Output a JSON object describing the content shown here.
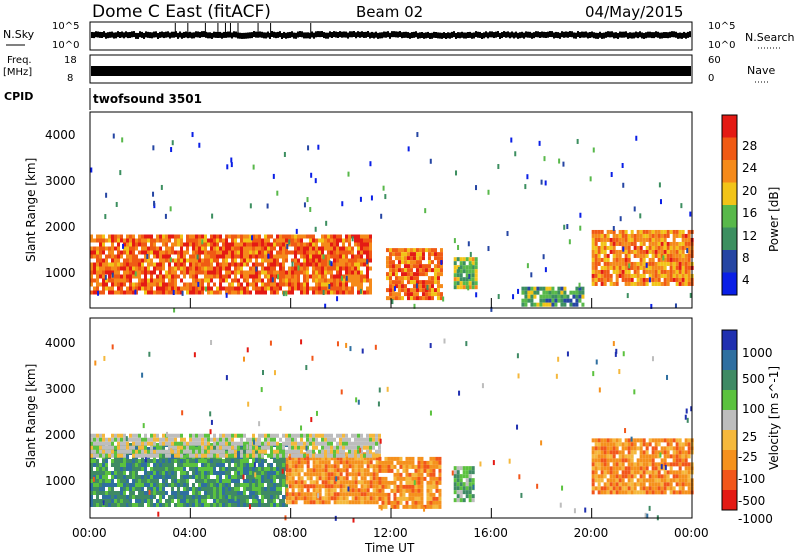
{
  "header": {
    "title": "Dome C East (fitACF)",
    "beam": "Beam 02",
    "date": "04/May/2015"
  },
  "top_panels": {
    "nsky_label": "N.Sky",
    "nsky_ticks": [
      "10^5",
      "10^0"
    ],
    "nsearch_label": "N.Search",
    "nsearch_ticks": [
      "10^5",
      "10^0"
    ],
    "freq_label": "Freq.",
    "freq_unit": "[MHz]",
    "freq_ticks": [
      "18",
      "8"
    ],
    "nave_label": "Nave",
    "nave_ticks": [
      "60",
      "0"
    ],
    "cpid_label": "CPID",
    "cpid_value": "twofsound 3501"
  },
  "colors": {
    "power": [
      "#0a1fe6",
      "#2545a3",
      "#3c8f60",
      "#58b84a",
      "#f2c418",
      "#f58a1a",
      "#f05a14",
      "#e41a14"
    ],
    "velocity": [
      "#2030b0",
      "#2f6fa0",
      "#3f8a64",
      "#5bc23e",
      "#bdbdbd",
      "#f5b83c",
      "#f5911c",
      "#f2561a",
      "#e41a14"
    ]
  },
  "chart_data": [
    {
      "type": "heatmap",
      "title": "Power",
      "ylabel": "Slant Range [km]",
      "xlabel": "",
      "x_ticks": [
        "00:00",
        "04:00",
        "08:00",
        "12:00",
        "16:00",
        "20:00",
        "00:00"
      ],
      "xlim_hours": [
        0,
        24
      ],
      "y_ticks": [
        "4000",
        "3000",
        "2000",
        "1000"
      ],
      "ylim": [
        180,
        4500
      ],
      "colorbar_label": "Power [dB]",
      "colorbar_ticks": [
        "28",
        "24",
        "20",
        "16",
        "12",
        "8",
        "4"
      ],
      "colorbar_range": [
        0,
        32
      ],
      "regions": [
        {
          "t": [
            0.0,
            11.2
          ],
          "r": [
            500,
            1800
          ],
          "v": 23
        },
        {
          "t": [
            11.8,
            14.0
          ],
          "r": [
            400,
            1500
          ],
          "v": 22
        },
        {
          "t": [
            14.5,
            15.4
          ],
          "r": [
            600,
            1300
          ],
          "v": 13
        },
        {
          "t": [
            17.2,
            19.6
          ],
          "r": [
            250,
            650
          ],
          "v": 10
        },
        {
          "t": [
            20.0,
            24.0
          ],
          "r": [
            700,
            1900
          ],
          "v": 21
        }
      ]
    },
    {
      "type": "heatmap",
      "title": "Velocity",
      "ylabel": "Slant Range [km]",
      "xlabel": "Time UT",
      "x_ticks": [
        "00:00",
        "04:00",
        "08:00",
        "12:00",
        "16:00",
        "20:00",
        "00:00"
      ],
      "xlim_hours": [
        0,
        24
      ],
      "y_ticks": [
        "4000",
        "3000",
        "2000",
        "1000"
      ],
      "ylim": [
        180,
        4500
      ],
      "colorbar_label": "Velocity [m s^-1]",
      "colorbar_ticks": [
        "1000",
        "500",
        "100",
        "25",
        "-25",
        "-100",
        "-500",
        "-1000"
      ],
      "regions": [
        {
          "t": [
            0.0,
            7.8
          ],
          "r": [
            500,
            1800
          ],
          "v": 150
        },
        {
          "t": [
            7.8,
            11.5
          ],
          "r": [
            500,
            1600
          ],
          "v": -200
        },
        {
          "t": [
            0.0,
            11.5
          ],
          "r": [
            1550,
            2000
          ],
          "v": 0
        },
        {
          "t": [
            11.5,
            14.0
          ],
          "r": [
            400,
            1500
          ],
          "v": -150
        },
        {
          "t": [
            14.5,
            15.3
          ],
          "r": [
            600,
            1300
          ],
          "v": 80
        },
        {
          "t": [
            20.0,
            24.0
          ],
          "r": [
            700,
            1900
          ],
          "v": -180
        }
      ]
    }
  ]
}
